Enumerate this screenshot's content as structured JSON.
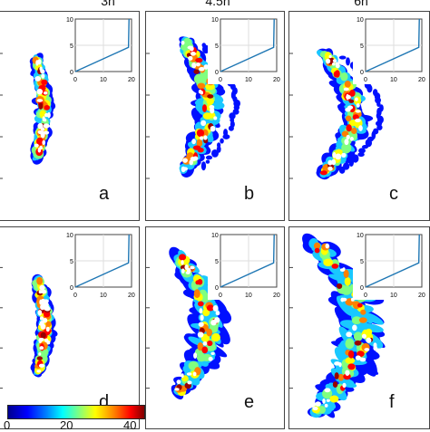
{
  "columns": [
    "3h",
    "4.5h",
    "6h"
  ],
  "panels": [
    {
      "label": "a",
      "row": 0,
      "col": 0
    },
    {
      "label": "b",
      "row": 0,
      "col": 1
    },
    {
      "label": "c",
      "row": 0,
      "col": 2
    },
    {
      "label": "d",
      "row": 1,
      "col": 0
    },
    {
      "label": "e",
      "row": 1,
      "col": 1
    },
    {
      "label": "f",
      "row": 1,
      "col": 2
    }
  ],
  "inset": {
    "x_ticks": [
      "0",
      "10",
      "20"
    ],
    "y_ticks": [
      "0",
      "5",
      "10"
    ],
    "line_color": "#1f77b4"
  },
  "colorbar": {
    "ticks": [
      "0",
      "20",
      "40"
    ],
    "colors": [
      "#00008f",
      "#0000ff",
      "#00ffff",
      "#ffff00",
      "#ff0000",
      "#800000"
    ]
  }
}
